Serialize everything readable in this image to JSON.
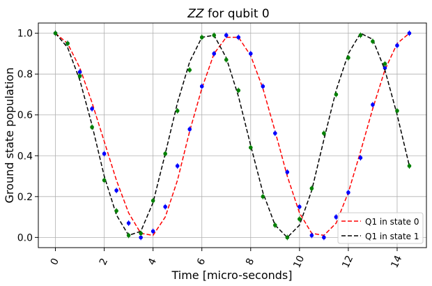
{
  "chart_data": {
    "type": "line",
    "title_italic": "ZZ",
    "title_rest": " for qubit 0",
    "xlabel": "Time [micro-seconds]",
    "ylabel": "Ground state population",
    "xlim": [
      -0.7,
      15.2
    ],
    "ylim": [
      -0.05,
      1.05
    ],
    "xticks": [
      0,
      2,
      4,
      6,
      8,
      10,
      12,
      14
    ],
    "yticks": [
      0.0,
      0.2,
      0.4,
      0.6,
      0.8,
      1.0
    ],
    "ytick_labels": [
      "0.0",
      "0.2",
      "0.4",
      "0.6",
      "0.8",
      "1.0"
    ],
    "grid": true,
    "legend_position": "bottom-right",
    "x": [
      0,
      0.5,
      1,
      1.5,
      2,
      2.5,
      3,
      3.5,
      4,
      4.5,
      5,
      5.5,
      6,
      6.5,
      7,
      7.5,
      8,
      8.5,
      9,
      9.5,
      10,
      10.5,
      11,
      11.5,
      12,
      12.5,
      13,
      13.5,
      14,
      14.5
    ],
    "series": [
      {
        "name": "Q1 in state 0",
        "line_color": "#ff0000",
        "marker_color": "#0000ff",
        "fit": [
          1.0,
          0.95,
          0.83,
          0.66,
          0.47,
          0.28,
          0.12,
          0.02,
          0.01,
          0.1,
          0.28,
          0.52,
          0.73,
          0.9,
          0.98,
          0.98,
          0.89,
          0.73,
          0.52,
          0.3,
          0.12,
          0.02,
          0.01,
          0.07,
          0.22,
          0.42,
          0.63,
          0.82,
          0.95,
          1.0
        ],
        "points": [
          1.0,
          0.95,
          0.81,
          0.63,
          0.41,
          0.23,
          0.07,
          0.0,
          0.03,
          0.15,
          0.35,
          0.53,
          0.74,
          0.9,
          0.99,
          0.98,
          0.9,
          0.74,
          0.51,
          0.32,
          0.15,
          0.01,
          0.0,
          0.1,
          0.22,
          0.39,
          0.65,
          0.83,
          0.94,
          1.0
        ]
      },
      {
        "name": "Q1 in state 1",
        "line_color": "#000000",
        "marker_color": "#008000",
        "fit": [
          1.0,
          0.93,
          0.77,
          0.55,
          0.3,
          0.11,
          0.01,
          0.03,
          0.17,
          0.41,
          0.66,
          0.86,
          0.98,
          0.99,
          0.88,
          0.69,
          0.45,
          0.22,
          0.06,
          0.0,
          0.06,
          0.23,
          0.48,
          0.72,
          0.9,
          1.0,
          0.97,
          0.82,
          0.6,
          0.35
        ],
        "points": [
          1.0,
          0.95,
          0.79,
          0.54,
          0.28,
          0.13,
          0.01,
          0.02,
          0.18,
          0.41,
          0.62,
          0.82,
          0.98,
          0.99,
          0.87,
          0.72,
          0.44,
          0.2,
          0.06,
          0.0,
          0.09,
          0.24,
          0.51,
          0.7,
          0.88,
          0.99,
          0.96,
          0.85,
          0.62,
          0.35
        ]
      }
    ]
  }
}
